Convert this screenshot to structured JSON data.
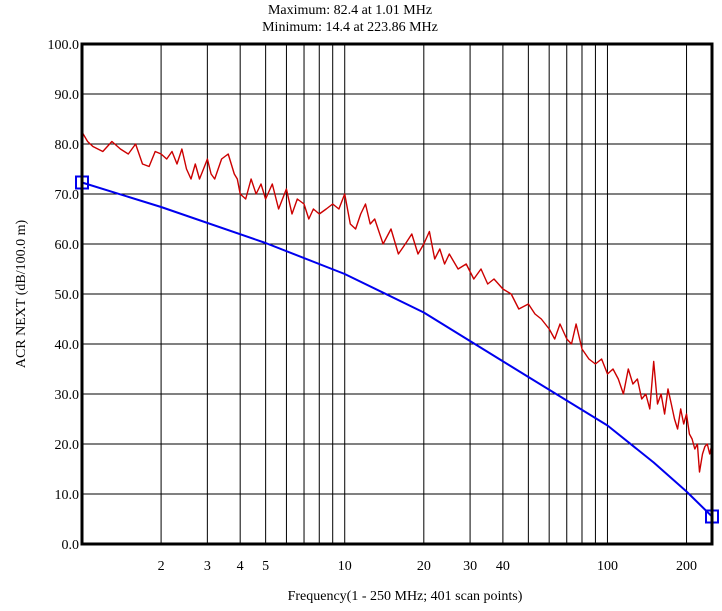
{
  "chart_data": {
    "type": "line",
    "header": {
      "maximum": "Maximum: 82.4 at 1.01 MHz",
      "minimum": "Minimum: 14.4 at 223.86 MHz"
    },
    "xlabel": "Frequency(1 - 250 MHz; 401 scan points)",
    "ylabel": "ACR NEXT (dB/100.0 m)",
    "x_scale": "log",
    "xlim": [
      1,
      250
    ],
    "ylim": [
      0,
      100
    ],
    "grid": true,
    "y_ticks": [
      "0.0",
      "10.0",
      "20.0",
      "30.0",
      "40.0",
      "50.0",
      "60.0",
      "70.0",
      "80.0",
      "90.0",
      "100.0"
    ],
    "x_tick_labels": [
      {
        "value": 2,
        "label": "2"
      },
      {
        "value": 3,
        "label": "3"
      },
      {
        "value": 4,
        "label": "4"
      },
      {
        "value": 5,
        "label": "5"
      },
      {
        "value": 10,
        "label": "10"
      },
      {
        "value": 20,
        "label": "20"
      },
      {
        "value": 30,
        "label": "30"
      },
      {
        "value": 40,
        "label": "40"
      },
      {
        "value": 100,
        "label": "100"
      },
      {
        "value": 200,
        "label": "200"
      }
    ],
    "x_gridlines": [
      2,
      3,
      4,
      5,
      6,
      7,
      8,
      9,
      10,
      20,
      30,
      40,
      50,
      60,
      70,
      80,
      90,
      100,
      200
    ],
    "series": [
      {
        "color": "#cc0000",
        "x": [
          1,
          1.05,
          1.1,
          1.2,
          1.3,
          1.4,
          1.5,
          1.6,
          1.7,
          1.8,
          1.9,
          2.0,
          2.1,
          2.2,
          2.3,
          2.4,
          2.5,
          2.6,
          2.7,
          2.8,
          2.9,
          3.0,
          3.1,
          3.2,
          3.4,
          3.6,
          3.8,
          3.9,
          4.0,
          4.2,
          4.4,
          4.6,
          4.8,
          5.0,
          5.3,
          5.6,
          6.0,
          6.3,
          6.6,
          7.0,
          7.3,
          7.6,
          8.0,
          8.5,
          9.0,
          9.5,
          10,
          10.5,
          11,
          11.5,
          12,
          12.5,
          13,
          14,
          15,
          16,
          17,
          18,
          19,
          20,
          21,
          22,
          23,
          24,
          25,
          27,
          29,
          31,
          33,
          35,
          37,
          40,
          43,
          46,
          50,
          53,
          56,
          60,
          63,
          66,
          70,
          73,
          76,
          80,
          85,
          90,
          95,
          100,
          105,
          110,
          115,
          120,
          125,
          130,
          135,
          140,
          145,
          150,
          155,
          160,
          165,
          170,
          175,
          180,
          185,
          190,
          195,
          200,
          205,
          210,
          215,
          220,
          224,
          230,
          235,
          240,
          245,
          250
        ],
        "y": [
          82.4,
          80.5,
          79.5,
          78.5,
          80.5,
          79,
          78,
          80,
          76,
          75.5,
          78.5,
          78,
          77,
          78.5,
          76,
          79,
          75,
          73,
          76,
          73,
          75,
          77,
          74,
          73,
          77,
          78,
          74,
          73,
          70,
          69,
          73,
          70,
          72,
          69,
          72,
          67,
          71,
          66,
          69,
          68,
          65,
          67,
          66,
          67,
          68,
          67,
          70,
          64,
          63,
          66,
          68,
          64,
          65,
          60,
          63,
          58,
          60,
          62,
          58,
          60,
          62.5,
          57,
          59,
          56,
          58,
          55,
          56,
          53,
          55,
          52,
          53,
          51,
          50,
          47,
          48,
          46,
          45,
          43,
          41,
          44,
          41,
          40,
          44,
          39,
          37,
          36,
          37,
          34,
          35,
          33,
          30,
          35,
          32,
          33,
          29,
          30,
          27,
          36.5,
          28,
          30,
          26,
          31,
          28,
          25,
          23,
          27,
          24,
          26,
          22,
          21,
          19,
          20,
          14.4,
          18,
          19.5,
          20,
          18,
          20
        ]
      },
      {
        "color": "#0000ee",
        "x": [
          1,
          2,
          5,
          10,
          20,
          50,
          100,
          150,
          200,
          250
        ],
        "y": [
          72.3,
          67.4,
          60.2,
          54,
          46.3,
          33.4,
          23.7,
          16.3,
          10.5,
          5.5
        ]
      }
    ],
    "markers": [
      {
        "x": 1,
        "y": 72.3,
        "color": "#0000ee"
      },
      {
        "x": 250,
        "y": 5.5,
        "color": "#0000ee"
      }
    ]
  }
}
